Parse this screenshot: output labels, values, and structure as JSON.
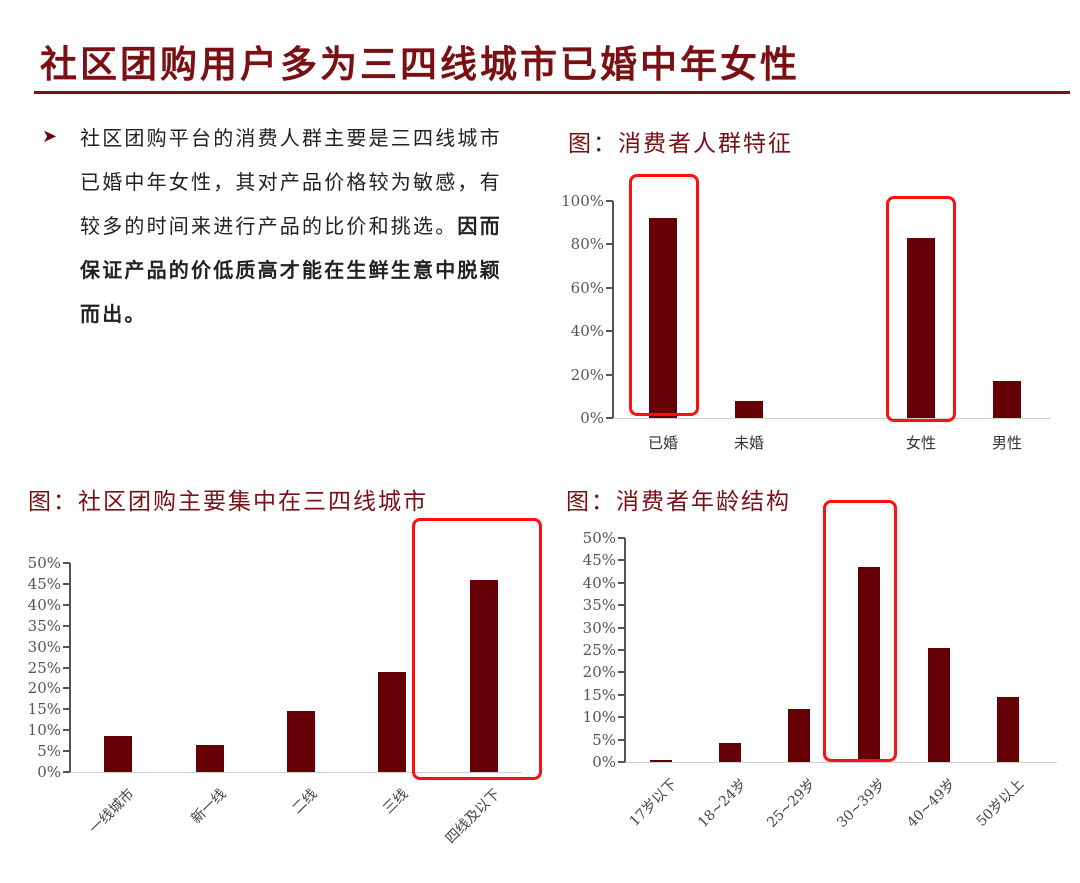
{
  "page": {
    "title": "社区团购用户多为三四线城市已婚中年女性",
    "bullet_icon": "arrow-right-triangle-icon",
    "paragraph": {
      "normal": "社区团购平台的消费人群主要是三四线城市已婚中年女性，其对产品价格较为敏感，有较多的时间来进行产品的比价和挑选。",
      "bold": "因而保证产品的价低质高才能在生鲜生意中脱颖而出。"
    },
    "colors": {
      "accent": "#7a0f14",
      "bar": "#650006",
      "highlight_box": "#ff1010"
    }
  },
  "charts": {
    "consumer": {
      "title": "图：消费者人群特征"
    },
    "city": {
      "title": "图：社区团购主要集中在三四线城市"
    },
    "age": {
      "title": "图：消费者年龄结构"
    }
  },
  "chart_data": [
    {
      "type": "bar",
      "title": "图：消费者人群特征",
      "categories": [
        "已婚",
        "未婚",
        "女性",
        "男性"
      ],
      "values": [
        92,
        8,
        83,
        17
      ],
      "unit": "%",
      "yticks": [
        "0%",
        "20%",
        "40%",
        "60%",
        "80%",
        "100%"
      ],
      "ylim": [
        0,
        100
      ],
      "xlabel": "",
      "ylabel": "",
      "grid": false,
      "highlighted": [
        "已婚",
        "女性"
      ]
    },
    {
      "type": "bar",
      "title": "图：社区团购主要集中在三四线城市",
      "categories": [
        "一线城市",
        "新一线",
        "二线",
        "三线",
        "四线及以下"
      ],
      "values": [
        8.5,
        6.5,
        14.5,
        24,
        46
      ],
      "unit": "%",
      "yticks": [
        "0%",
        "5%",
        "10%",
        "15%",
        "20%",
        "25%",
        "30%",
        "35%",
        "40%",
        "45%",
        "50%"
      ],
      "ylim": [
        0,
        50
      ],
      "xlabel": "",
      "ylabel": "",
      "grid": false,
      "highlighted": [
        "四线及以下"
      ]
    },
    {
      "type": "bar",
      "title": "图：消费者年龄结构",
      "categories": [
        "17岁以下",
        "18~24岁",
        "25~29岁",
        "30~39岁",
        "40~49岁",
        "50岁以上"
      ],
      "values": [
        0.5,
        4.2,
        11.8,
        43.5,
        25.4,
        14.5
      ],
      "unit": "%",
      "yticks": [
        "0%",
        "5%",
        "10%",
        "15%",
        "20%",
        "25%",
        "30%",
        "35%",
        "40%",
        "45%",
        "50%"
      ],
      "ylim": [
        0,
        50
      ],
      "xlabel": "",
      "ylabel": "",
      "grid": false,
      "highlighted": [
        "30~39岁"
      ]
    }
  ]
}
